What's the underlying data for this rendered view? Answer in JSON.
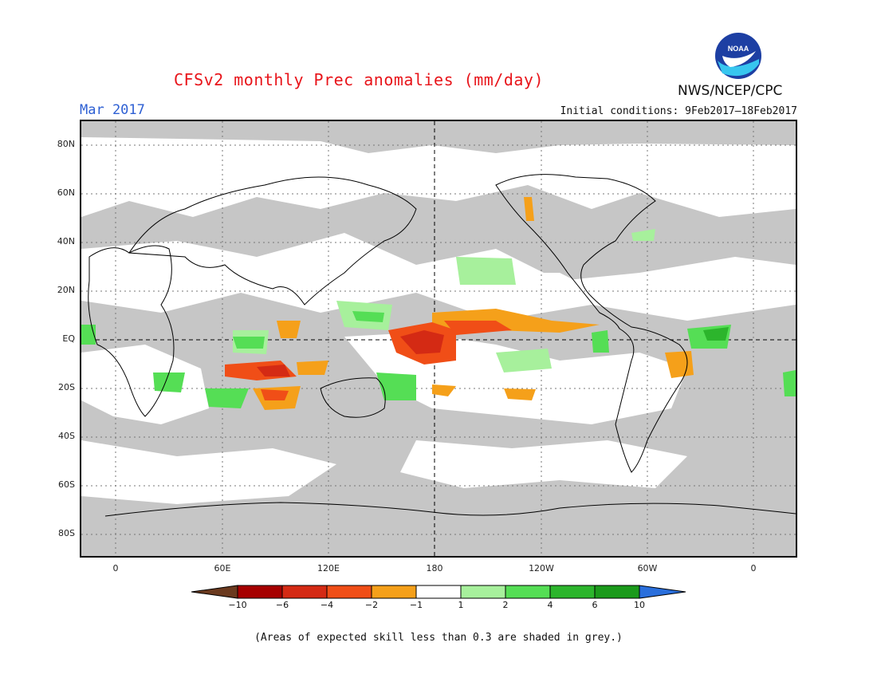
{
  "title": "CFSv2 monthly Prec anomalies (mm/day)",
  "month": "Mar 2017",
  "initial_conditions": "Initial conditions: 9Feb2017–18Feb2017",
  "agency": "NWS/NCEP/CPC",
  "logo_icon": "noaa-logo",
  "lat_labels": [
    "80N",
    "60N",
    "40N",
    "20N",
    "EQ",
    "20S",
    "40S",
    "60S",
    "80S"
  ],
  "lon_labels": [
    "0",
    "60E",
    "120E",
    "180",
    "120W",
    "60W",
    "0"
  ],
  "colorbar": {
    "labels": [
      "−10",
      "−6",
      "−4",
      "−2",
      "−1",
      "1",
      "2",
      "4",
      "6",
      "10"
    ],
    "colors": [
      "#6b3a1f",
      "#a60000",
      "#d42a14",
      "#f04e17",
      "#f5a01a",
      "#ffffff",
      "#a7f09c",
      "#55de55",
      "#2cb52c",
      "#1b9a1b",
      "#2a6fdc"
    ]
  },
  "grey_note": "(Areas of expected skill less than 0.3 are shaded in grey.)"
}
